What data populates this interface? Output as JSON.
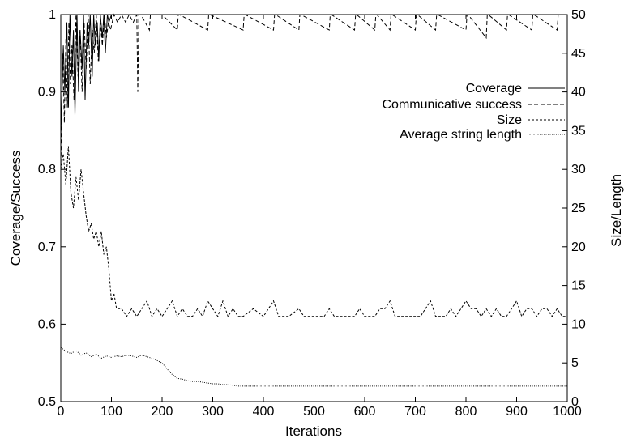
{
  "chart_data": {
    "type": "line",
    "xlabel": "Iterations",
    "ylabel_left": "Coverage/Success",
    "ylabel_right": "Size/Length",
    "xlim": [
      0,
      1000
    ],
    "ylim_left": [
      0.5,
      1.0
    ],
    "ylim_right": [
      0,
      50
    ],
    "xticks": [
      "0",
      "100",
      "200",
      "300",
      "400",
      "500",
      "600",
      "700",
      "800",
      "900",
      "1000"
    ],
    "yticks_left": [
      "0.5",
      "0.6",
      "0.7",
      "0.8",
      "0.9",
      "1"
    ],
    "yticks_right": [
      "0",
      "5",
      "10",
      "15",
      "20",
      "25",
      "30",
      "35",
      "40",
      "45",
      "50"
    ],
    "legend_position": "upper-right",
    "grid": false,
    "series": [
      {
        "name": "Coverage",
        "axis": "left",
        "dash": "solid",
        "x": [
          0,
          5,
          8,
          12,
          15,
          18,
          22,
          25,
          28,
          32,
          35,
          38,
          42,
          45,
          48,
          52,
          55,
          58,
          62,
          65,
          68,
          72,
          75,
          78,
          82,
          85,
          88,
          92,
          95,
          100,
          1000
        ],
        "y": [
          0.84,
          0.96,
          0.9,
          0.99,
          0.88,
          1.0,
          0.92,
          0.98,
          0.87,
          1.0,
          0.9,
          0.98,
          0.93,
          1.0,
          0.89,
          0.99,
          0.96,
          1.0,
          0.92,
          1.0,
          0.96,
          0.99,
          0.94,
          1.0,
          0.97,
          1.0,
          0.95,
          1.0,
          0.99,
          1.0,
          1.0
        ]
      },
      {
        "name": "Communicative success",
        "axis": "left",
        "dash": "dashed",
        "x": [
          0,
          4,
          7,
          10,
          13,
          16,
          19,
          22,
          26,
          30,
          34,
          38,
          42,
          46,
          50,
          54,
          58,
          62,
          66,
          70,
          74,
          78,
          82,
          86,
          90,
          94,
          98,
          105,
          112,
          120,
          128,
          135,
          143,
          150,
          152,
          154,
          158,
          175,
          177,
          179,
          200,
          230,
          232,
          234,
          290,
          292,
          294,
          360,
          362,
          364,
          420,
          422,
          424,
          470,
          472,
          474,
          530,
          532,
          534,
          580,
          582,
          584,
          620,
          622,
          624,
          650,
          652,
          654,
          700,
          702,
          704,
          740,
          742,
          744,
          800,
          802,
          804,
          840,
          842,
          844,
          880,
          882,
          884,
          930,
          932,
          934,
          980,
          982,
          984,
          1000
        ],
        "y": [
          0.8,
          0.95,
          0.86,
          0.97,
          0.88,
          0.99,
          0.91,
          0.96,
          0.89,
          1.0,
          0.92,
          0.98,
          0.9,
          0.99,
          0.93,
          1.0,
          0.91,
          0.98,
          0.95,
          1.0,
          0.94,
          0.99,
          0.96,
          1.0,
          0.97,
          0.99,
          0.98,
          1.0,
          0.99,
          1.0,
          0.99,
          1.0,
          0.99,
          1.0,
          0.9,
          1.0,
          1.0,
          0.98,
          1.0,
          1.0,
          1.0,
          0.98,
          1.0,
          1.0,
          0.98,
          1.0,
          1.0,
          0.98,
          1.0,
          1.0,
          0.98,
          1.0,
          1.0,
          0.98,
          1.0,
          1.0,
          0.98,
          1.0,
          1.0,
          0.98,
          1.0,
          1.0,
          0.98,
          1.0,
          1.0,
          0.98,
          1.0,
          1.0,
          0.98,
          1.0,
          1.0,
          0.98,
          1.0,
          1.0,
          0.98,
          1.0,
          1.0,
          0.97,
          1.0,
          1.0,
          0.98,
          1.0,
          1.0,
          0.98,
          1.0,
          1.0,
          0.98,
          1.0,
          1.0,
          1.0
        ]
      },
      {
        "name": "Size",
        "axis": "right",
        "dash": "short-dashed",
        "x": [
          0,
          5,
          10,
          15,
          20,
          25,
          30,
          35,
          40,
          45,
          50,
          55,
          60,
          65,
          70,
          75,
          80,
          85,
          90,
          95,
          100,
          105,
          110,
          120,
          130,
          140,
          150,
          160,
          170,
          180,
          190,
          200,
          210,
          220,
          230,
          240,
          250,
          260,
          270,
          280,
          290,
          300,
          310,
          320,
          330,
          340,
          350,
          360,
          380,
          400,
          410,
          420,
          430,
          450,
          470,
          480,
          490,
          500,
          520,
          530,
          540,
          560,
          580,
          590,
          600,
          620,
          630,
          640,
          650,
          660,
          670,
          690,
          710,
          720,
          730,
          740,
          760,
          770,
          780,
          790,
          800,
          810,
          820,
          830,
          840,
          850,
          860,
          870,
          880,
          890,
          900,
          910,
          920,
          930,
          940,
          950,
          960,
          970,
          980,
          990,
          1000
        ],
        "y": [
          30,
          32,
          28,
          33,
          27,
          25,
          29,
          26,
          30,
          27,
          24,
          22,
          23,
          21,
          22,
          20,
          22,
          19,
          20,
          17,
          13,
          14,
          12,
          12,
          11,
          12,
          11,
          12,
          13,
          11,
          12,
          11,
          12,
          13,
          11,
          12,
          11,
          11,
          12,
          11,
          13,
          12,
          11,
          13,
          11,
          12,
          11,
          11,
          12,
          11,
          12,
          13,
          11,
          11,
          12,
          11,
          11,
          11,
          11,
          12,
          11,
          11,
          11,
          12,
          11,
          11,
          12,
          12,
          13,
          11,
          11,
          11,
          11,
          12,
          13,
          11,
          11,
          12,
          11,
          12,
          13,
          12,
          12,
          11,
          12,
          11,
          12,
          11,
          11,
          12,
          13,
          11,
          12,
          12,
          11,
          12,
          12,
          11,
          12,
          11,
          11
        ]
      },
      {
        "name": "Average string length",
        "axis": "right",
        "dash": "dotted",
        "x": [
          0,
          10,
          20,
          30,
          40,
          50,
          60,
          70,
          80,
          90,
          100,
          110,
          120,
          130,
          140,
          150,
          160,
          170,
          180,
          190,
          200,
          210,
          220,
          230,
          240,
          250,
          260,
          270,
          280,
          290,
          300,
          310,
          320,
          330,
          340,
          350,
          360,
          400,
          500,
          600,
          700,
          800,
          900,
          1000
        ],
        "y": [
          7,
          6.5,
          6.2,
          6.6,
          6.0,
          6.3,
          5.8,
          6.1,
          5.6,
          5.9,
          5.7,
          5.9,
          5.8,
          6.0,
          5.9,
          5.7,
          6.0,
          5.8,
          5.6,
          5.3,
          5.0,
          4.2,
          3.5,
          3.0,
          2.9,
          2.7,
          2.6,
          2.6,
          2.5,
          2.4,
          2.3,
          2.3,
          2.2,
          2.2,
          2.1,
          2.0,
          2.0,
          2.0,
          2.0,
          2.0,
          2.0,
          2.0,
          2.0,
          2.0
        ]
      }
    ]
  }
}
